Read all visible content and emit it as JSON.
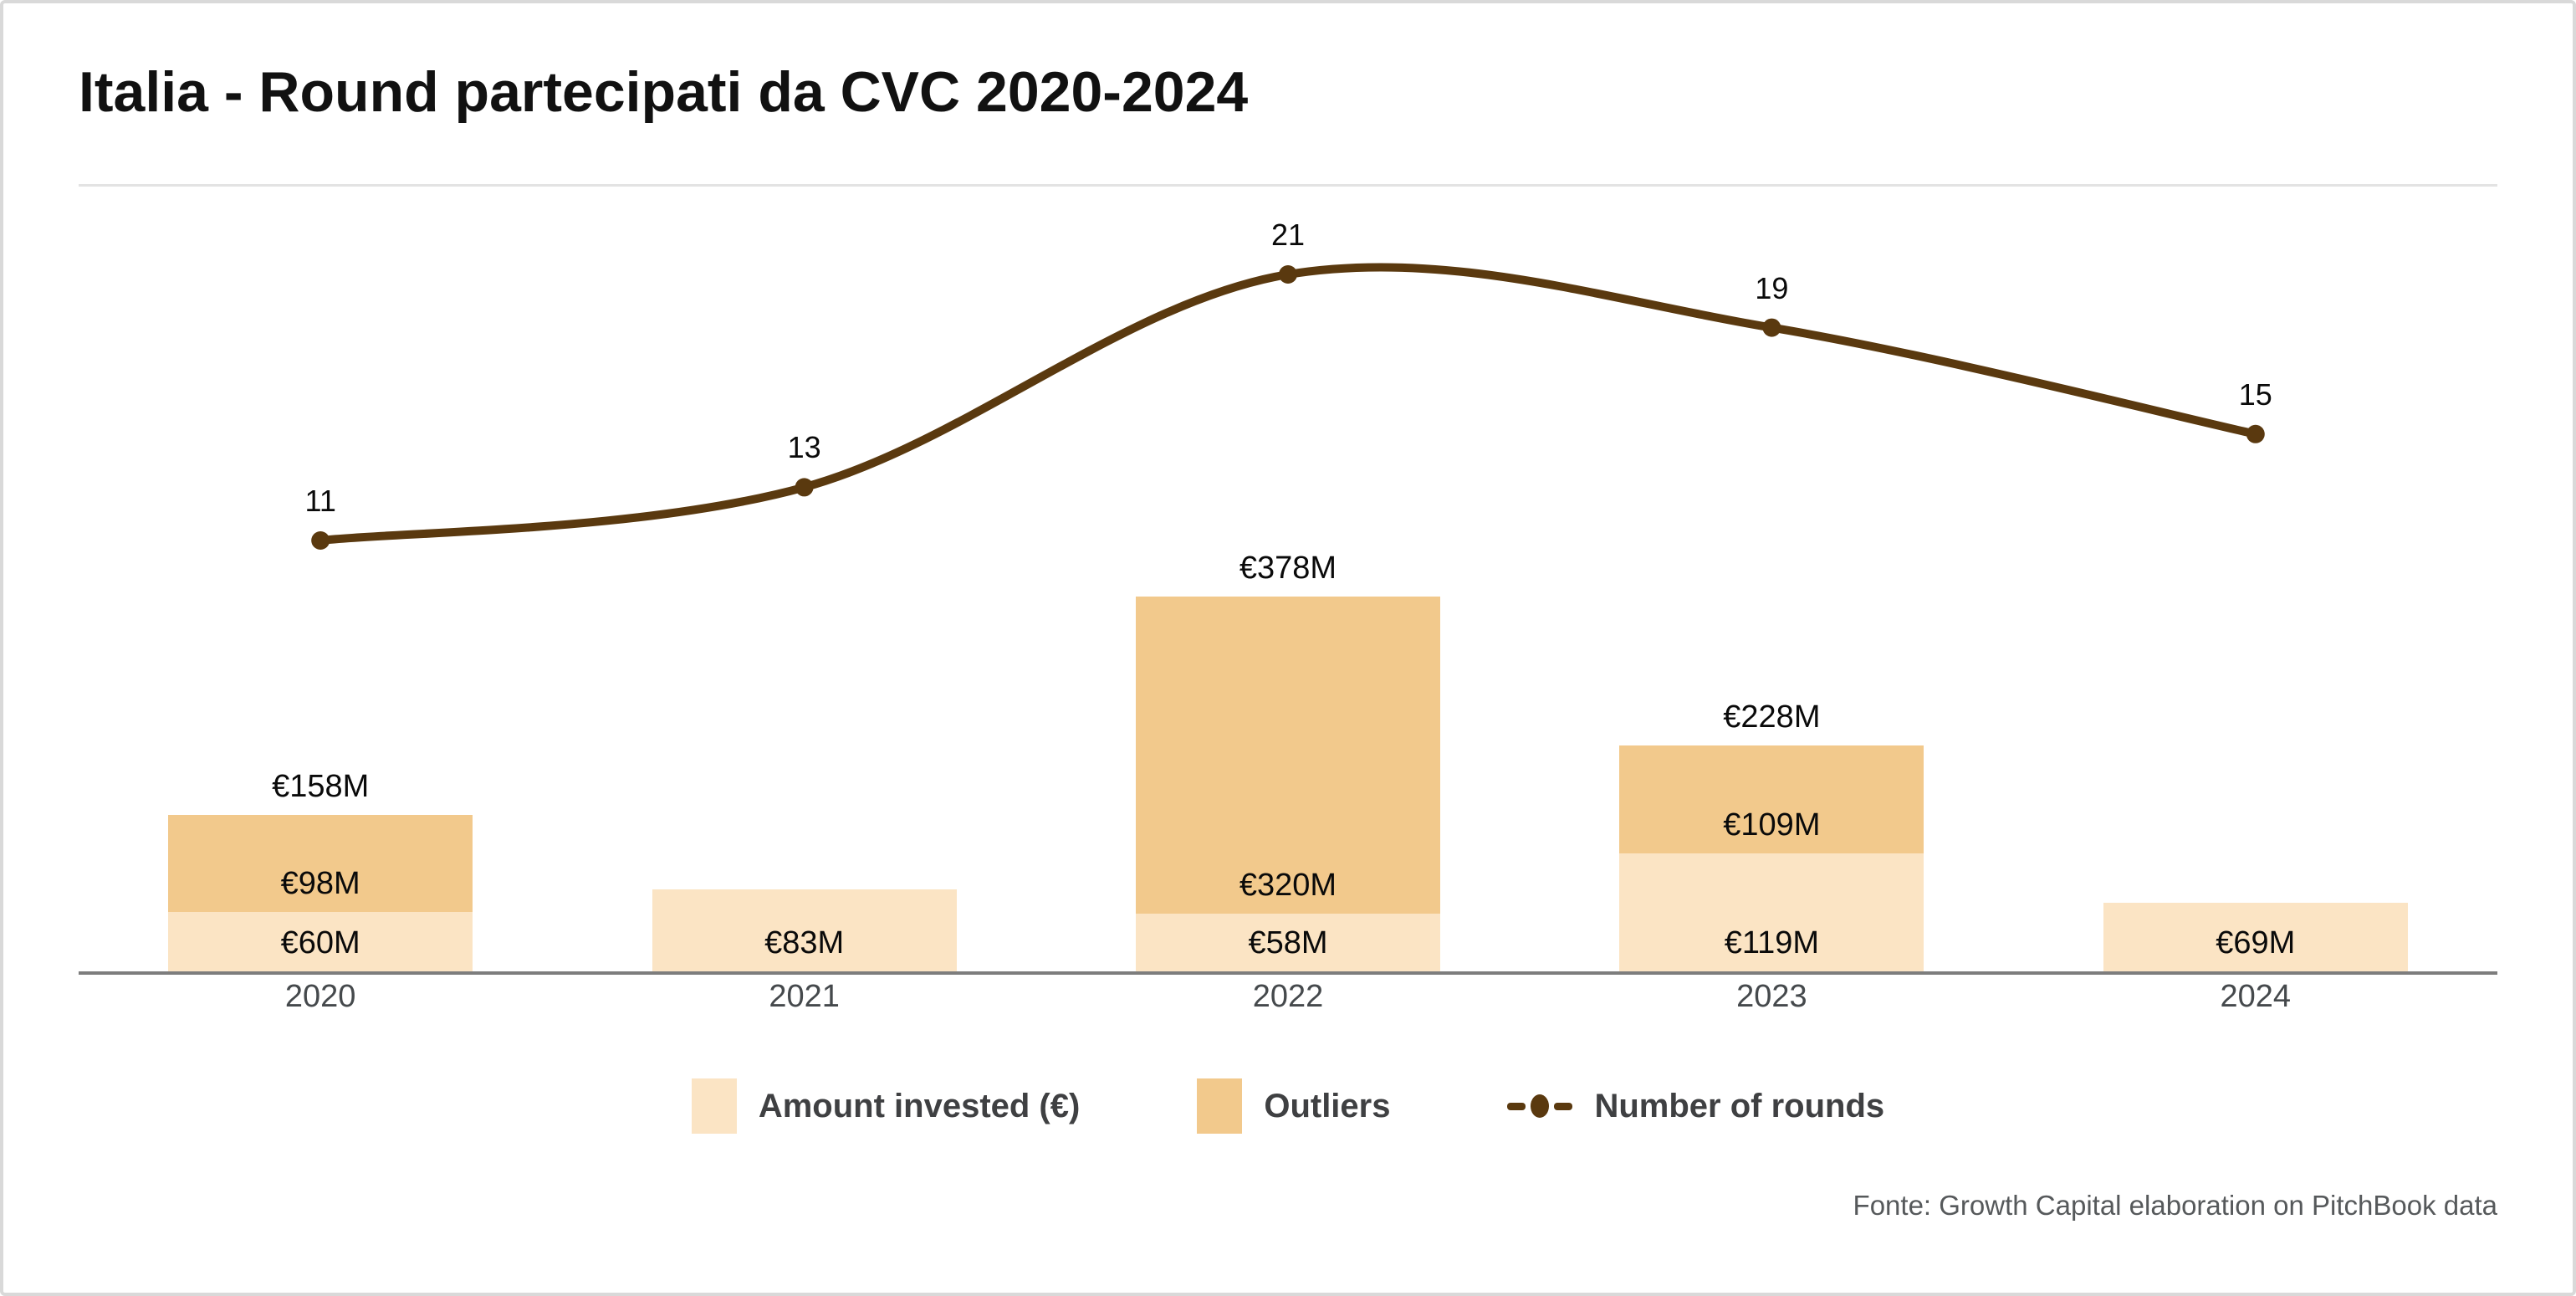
{
  "title": "Italia - Round partecipati da CVC 2020-2024",
  "source": "Fonte: Growth Capital elaboration on PitchBook data",
  "legend": {
    "amount_label": "Amount invested (€)",
    "outliers_label": "Outliers",
    "rounds_label": "Number of rounds"
  },
  "colors": {
    "amount_bar": "#FBE4C4",
    "outliers_bar": "#F2C98C",
    "rounds_line": "#5A390F",
    "axis": "#7D7D7D",
    "year_label": "#45494C",
    "value_label": "#0A0A0A",
    "legend_text": "#3F4042",
    "source_text": "#56595B",
    "divider": "#E3E3E3",
    "border": "#D9D9D9"
  },
  "chart_data": {
    "type": "bar",
    "subtype": "stacked-bars-with-line",
    "title": "Italia - Round partecipati da CVC 2020-2024",
    "categories": [
      "2020",
      "2021",
      "2022",
      "2023",
      "2024"
    ],
    "series": [
      {
        "name": "Amount invested (€)",
        "type": "bar",
        "stack": "amount",
        "values": [
          60,
          83,
          58,
          119,
          69
        ],
        "labels": [
          "€60M",
          "€83M",
          "€58M",
          "€119M",
          "€69M"
        ],
        "color": "#FBE4C4"
      },
      {
        "name": "Outliers",
        "type": "bar",
        "stack": "amount",
        "values": [
          98,
          0,
          320,
          109,
          0
        ],
        "labels": [
          "€98M",
          null,
          "€320M",
          "€109M",
          null
        ],
        "color": "#F2C98C"
      },
      {
        "name": "Number of rounds",
        "type": "line",
        "values": [
          11,
          13,
          21,
          19,
          15
        ],
        "labels": [
          "11",
          "13",
          "21",
          "19",
          "15"
        ],
        "color": "#5A390F"
      }
    ],
    "totals": {
      "values": [
        158,
        83,
        378,
        228,
        69
      ],
      "labels": [
        "€158M",
        null,
        "€378M",
        "€228M",
        null
      ]
    },
    "unit": "EUR millions",
    "xlabel": "",
    "ylabel": "",
    "grid": false,
    "legend_position": "bottom"
  }
}
